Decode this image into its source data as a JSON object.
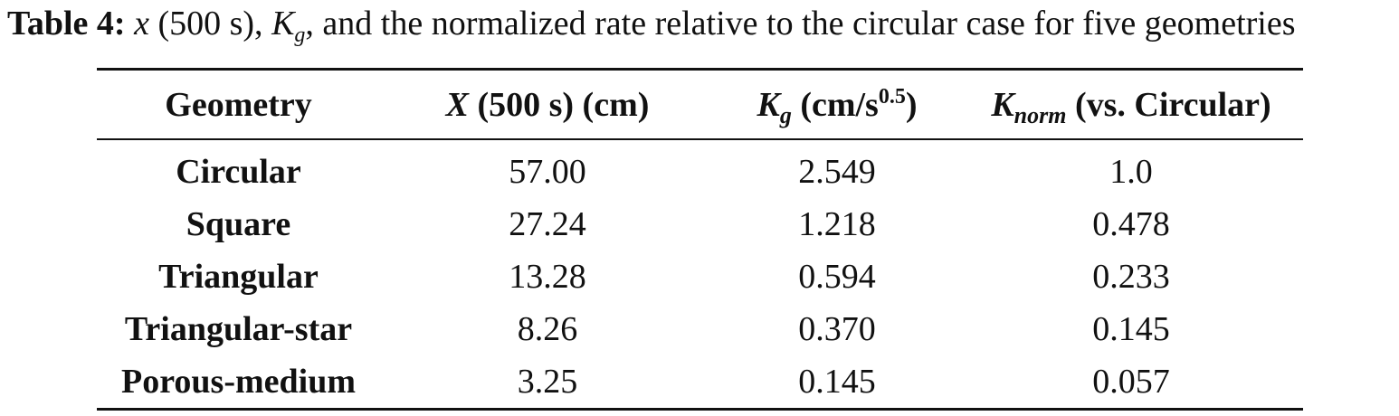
{
  "caption": {
    "label": "Table 4:",
    "x_symbol": "x",
    "x_unit": "(500 s),",
    "k_symbol": "K",
    "k_sub": "g",
    "text": ", and the normalized rate relative to the circular case for five geometries"
  },
  "table": {
    "headers": {
      "geometry": "Geometry",
      "x_symbol": "X",
      "x_rest": "(500 s) (cm)",
      "kg_symbol": "K",
      "kg_sub": "g",
      "kg_unit": "(cm/s",
      "kg_exp": "0.5",
      "kg_close": ")",
      "knorm_symbol": "K",
      "knorm_sub": "norm",
      "knorm_rest": "(vs. Circular)"
    },
    "rows": [
      {
        "geometry": "Circular",
        "x": "57.00",
        "kg": "2.549",
        "knorm": "1.0"
      },
      {
        "geometry": "Square",
        "x": "27.24",
        "kg": "1.218",
        "knorm": "0.478"
      },
      {
        "geometry": "Triangular",
        "x": "13.28",
        "kg": "0.594",
        "knorm": "0.233"
      },
      {
        "geometry": "Triangular-star",
        "x": "8.26",
        "kg": "0.370",
        "knorm": "0.145"
      },
      {
        "geometry": "Porous-medium",
        "x": "3.25",
        "kg": "0.145",
        "knorm": "0.057"
      }
    ]
  }
}
